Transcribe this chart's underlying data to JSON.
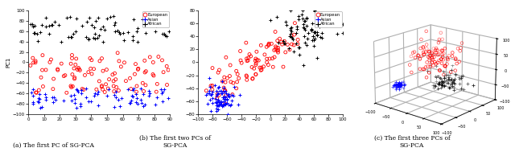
{
  "background_color": "#ffffff",
  "panel_a": {
    "xlim": [
      0,
      90
    ],
    "ylim": [
      -100,
      100
    ],
    "xticks": [
      0,
      10,
      20,
      30,
      40,
      50,
      60,
      70,
      80,
      90
    ],
    "yticks": [
      -100,
      -80,
      -60,
      -40,
      -20,
      0,
      20,
      40,
      60,
      80,
      100
    ],
    "ylabel": "PC1"
  },
  "panel_b": {
    "xlim": [
      -100,
      100
    ],
    "ylim": [
      -80,
      80
    ],
    "xticks": [
      -100,
      -80,
      -60,
      -40,
      -20,
      0,
      20,
      40,
      60,
      80,
      100
    ],
    "yticks": [
      -80,
      -60,
      -40,
      -20,
      0,
      20,
      40,
      60,
      80
    ]
  },
  "panel_c": {
    "xlim": [
      -100,
      100
    ],
    "ylim": [
      -100,
      100
    ],
    "zlim": [
      -100,
      100
    ],
    "xticks": [
      -100,
      -50,
      0,
      50,
      100
    ],
    "yticks": [
      -100,
      -50,
      0,
      50,
      100
    ],
    "zticks": [
      -100,
      -50,
      0,
      50,
      100
    ]
  },
  "caption_a": "(a) The first PC of SG-PCA",
  "caption_b": "(b) The first two PCs of SG-PCA",
  "caption_c": "(c) The first three PCs of SG-PCA",
  "color_eur": "#FF0000",
  "color_asi": "#0000FF",
  "color_afr": "#000000",
  "seeds": {
    "a_eur": 10,
    "a_asi": 11,
    "a_afr": 12,
    "b_eur": 20,
    "b_asi": 21,
    "b_afr": 22,
    "c_eur": 30,
    "c_asi": 31,
    "c_afr": 32
  }
}
